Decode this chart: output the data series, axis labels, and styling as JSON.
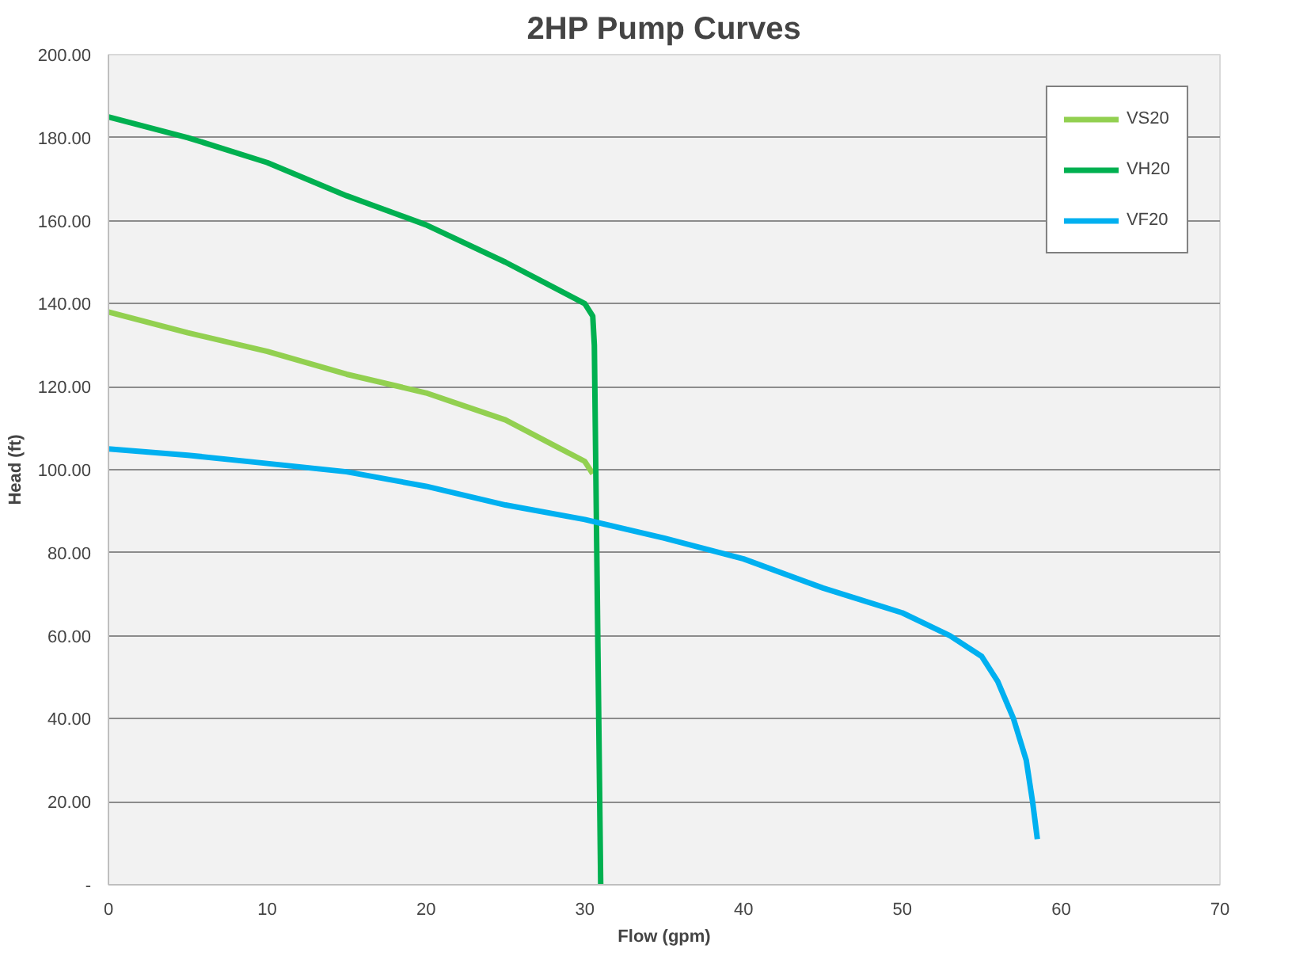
{
  "chart_data": {
    "type": "line",
    "title": "2HP Pump Curves",
    "xlabel": "Flow (gpm)",
    "ylabel": "Head (ft)",
    "xlim": [
      0,
      70
    ],
    "xticks": [
      0,
      10,
      20,
      30,
      40,
      50,
      60,
      70
    ],
    "ylim": [
      0,
      200
    ],
    "yticks": [
      {
        "value": 0,
        "label": "-"
      },
      {
        "value": 20,
        "label": "20.00"
      },
      {
        "value": 40,
        "label": "40.00"
      },
      {
        "value": 60,
        "label": "60.00"
      },
      {
        "value": 80,
        "label": "80.00"
      },
      {
        "value": 100,
        "label": "100.00"
      },
      {
        "value": 120,
        "label": "120.00"
      },
      {
        "value": 140,
        "label": "140.00"
      },
      {
        "value": 160,
        "label": "160.00"
      },
      {
        "value": 180,
        "label": "180.00"
      },
      {
        "value": 200,
        "label": "200.00"
      }
    ],
    "grid": "y",
    "legend": "top right",
    "marker": "none",
    "line_style": "solid",
    "series": [
      {
        "name": "VS20",
        "color": "#92d050",
        "x": [
          0,
          5,
          10,
          15,
          20,
          25,
          28,
          30,
          30.5
        ],
        "values": [
          138,
          133,
          128.5,
          123,
          118.5,
          112,
          106,
          102,
          99
        ]
      },
      {
        "name": "VH20",
        "color": "#00b050",
        "x": [
          0,
          5,
          10,
          15,
          20,
          25,
          28,
          30,
          30.5,
          30.6,
          31
        ],
        "values": [
          185,
          180,
          174,
          166,
          159,
          150,
          144,
          140,
          137,
          130,
          0
        ]
      },
      {
        "name": "VF20",
        "color": "#00b0f0",
        "x": [
          0,
          5,
          10,
          15,
          20,
          25,
          30,
          35,
          40,
          45,
          50,
          53,
          55,
          56,
          57,
          57.8,
          58.2,
          58.5
        ],
        "values": [
          105,
          103.5,
          101.5,
          99.5,
          96,
          91.5,
          88,
          83.5,
          78.5,
          71.5,
          65.5,
          60,
          55,
          49,
          40,
          30,
          20,
          11
        ]
      }
    ]
  }
}
